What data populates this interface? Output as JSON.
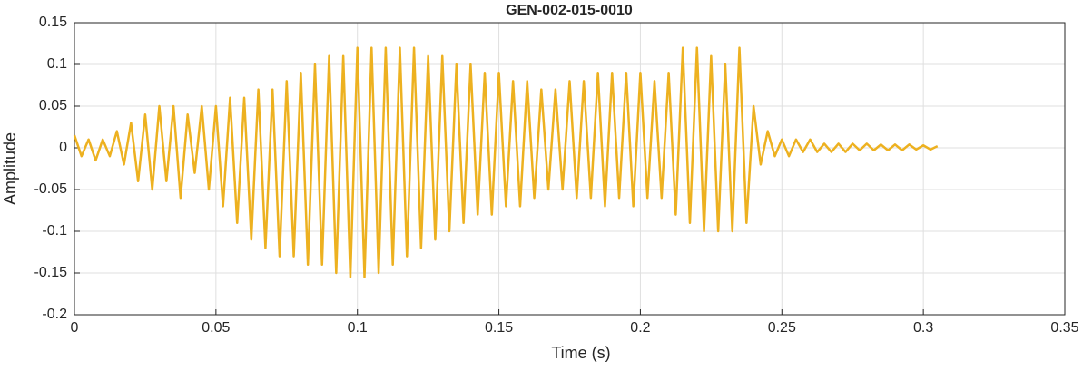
{
  "chart_data": {
    "type": "line",
    "title": "GEN-002-015-0010",
    "x_label": "Time (s)",
    "y_label": "Amplitude",
    "xlim": [
      0,
      0.35
    ],
    "xticks": [
      0,
      0.05,
      0.1,
      0.15,
      0.2,
      0.25,
      0.3,
      0.35
    ],
    "ylim": [
      -0.2,
      0.15
    ],
    "yticks": [
      -0.2,
      -0.15,
      -0.1,
      -0.05,
      0,
      0.05,
      0.1,
      0.15
    ],
    "grid": true,
    "x": [
      0,
      0.0025,
      0.005,
      0.0075,
      0.01,
      0.0125,
      0.015,
      0.0175,
      0.02,
      0.0225,
      0.025,
      0.0275,
      0.03,
      0.0325,
      0.035,
      0.0375,
      0.04,
      0.0425,
      0.045,
      0.0475,
      0.05,
      0.0525,
      0.055,
      0.0575,
      0.06,
      0.0625,
      0.065,
      0.0675,
      0.07,
      0.0725,
      0.075,
      0.0775,
      0.08,
      0.0825,
      0.085,
      0.0875,
      0.09,
      0.0925,
      0.095,
      0.0975,
      0.1,
      0.1025,
      0.105,
      0.1075,
      0.11,
      0.1125,
      0.115,
      0.1175,
      0.12,
      0.1225,
      0.125,
      0.1275,
      0.13,
      0.1325,
      0.135,
      0.1375,
      0.14,
      0.1425,
      0.145,
      0.1475,
      0.15,
      0.1525,
      0.155,
      0.1575,
      0.16,
      0.1625,
      0.165,
      0.1675,
      0.17,
      0.1725,
      0.175,
      0.1775,
      0.18,
      0.1825,
      0.185,
      0.1875,
      0.19,
      0.1925,
      0.195,
      0.1975,
      0.2,
      0.2025,
      0.205,
      0.2075,
      0.21,
      0.2125,
      0.215,
      0.2175,
      0.22,
      0.2225,
      0.225,
      0.2275,
      0.23,
      0.2325,
      0.235,
      0.2375,
      0.24,
      0.2425,
      0.245,
      0.2475,
      0.25,
      0.2525,
      0.255,
      0.2575,
      0.26,
      0.2625,
      0.265,
      0.2675,
      0.27,
      0.2725,
      0.275,
      0.2775,
      0.28,
      0.2825,
      0.285,
      0.2875,
      0.29,
      0.2925,
      0.295,
      0.2975,
      0.3,
      0.3025,
      0.305
    ],
    "series": [
      {
        "color": "#EDB120",
        "values": [
          0.015,
          -0.01,
          0.01,
          -0.015,
          0.01,
          -0.01,
          0.02,
          -0.02,
          0.03,
          -0.04,
          0.04,
          -0.05,
          0.05,
          -0.04,
          0.05,
          -0.06,
          0.04,
          -0.03,
          0.05,
          -0.05,
          0.05,
          -0.07,
          0.06,
          -0.09,
          0.06,
          -0.11,
          0.07,
          -0.12,
          0.07,
          -0.13,
          0.08,
          -0.13,
          0.09,
          -0.14,
          0.1,
          -0.14,
          0.11,
          -0.15,
          0.11,
          -0.155,
          0.12,
          -0.155,
          0.12,
          -0.15,
          0.12,
          -0.14,
          0.12,
          -0.13,
          0.12,
          -0.12,
          0.11,
          -0.11,
          0.11,
          -0.1,
          0.1,
          -0.09,
          0.1,
          -0.08,
          0.09,
          -0.08,
          0.09,
          -0.07,
          0.08,
          -0.07,
          0.08,
          -0.06,
          0.07,
          -0.05,
          0.07,
          -0.05,
          0.08,
          -0.06,
          0.08,
          -0.06,
          0.09,
          -0.07,
          0.09,
          -0.06,
          0.09,
          -0.07,
          0.09,
          -0.06,
          0.08,
          -0.06,
          0.09,
          -0.08,
          0.12,
          -0.09,
          0.12,
          -0.1,
          0.11,
          -0.1,
          0.1,
          -0.1,
          0.12,
          -0.09,
          0.05,
          -0.02,
          0.02,
          -0.01,
          0.01,
          -0.01,
          0.01,
          -0.005,
          0.01,
          -0.005,
          0.005,
          -0.005,
          0.005,
          -0.005,
          0.005,
          -0.003,
          0.005,
          -0.003,
          0.004,
          -0.003,
          0.004,
          -0.003,
          0.004,
          -0.002,
          0.003,
          -0.002,
          0.002
        ]
      }
    ]
  }
}
